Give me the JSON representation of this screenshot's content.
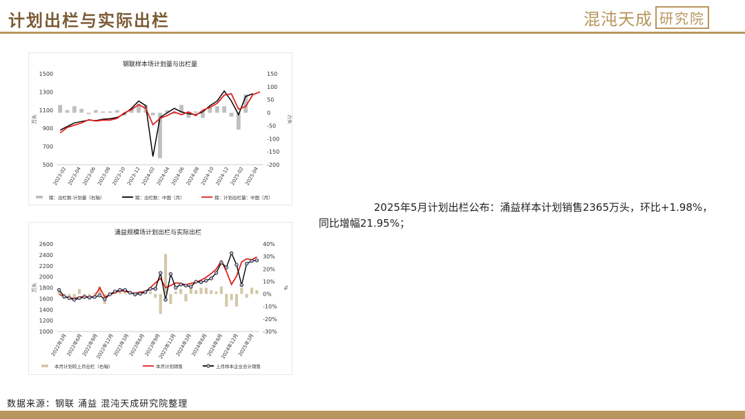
{
  "header": {
    "title": "计划出栏与实际出栏",
    "logo_main": "混沌天成",
    "logo_box": "研究院"
  },
  "colors": {
    "accent": "#b8955c",
    "red": "#e02020",
    "black": "#000000",
    "grey_bar": "#bfbfbf",
    "tan_bar": "#d2c8a8"
  },
  "text_block": "2025年5月计划出栏公布：涌益样本计划销售2365万头，环比+1.98%，同比增幅21.95%；",
  "source": "数据来源：钢联 涌益 混沌天成研究院整理",
  "chart_data": [
    {
      "type": "bar+line",
      "title": "钢联样本场计划量与出栏量",
      "ylabel": "万头",
      "ylabel_right": "万头",
      "ylim": [
        500,
        1500
      ],
      "yticks": [
        500,
        700,
        900,
        1100,
        1300,
        1500
      ],
      "ylim_right": [
        -200,
        150
      ],
      "yticks_right": [
        -200,
        -150,
        -100,
        -50,
        0,
        50,
        100,
        150
      ],
      "xtick_labels": [
        "2023-02",
        "2023-04",
        "2023-06",
        "2023-08",
        "2023-10",
        "2023-12",
        "2024-02",
        "2024-04",
        "2024-06",
        "2024-08",
        "2024-10",
        "2024-12",
        "2025-02",
        "2025-04"
      ],
      "x": [
        "2023-01",
        "2023-02",
        "2023-03",
        "2023-04",
        "2023-05",
        "2023-06",
        "2023-07",
        "2023-08",
        "2023-09",
        "2023-10",
        "2023-11",
        "2023-12",
        "2024-01",
        "2024-02",
        "2024-03",
        "2024-04",
        "2024-05",
        "2024-06",
        "2024-07",
        "2024-08",
        "2024-09",
        "2024-10",
        "2024-11",
        "2024-12",
        "2025-01",
        "2025-02",
        "2025-03",
        "2025-04",
        "2025-05"
      ],
      "series": [
        {
          "name": "猪：出栏数-计划量（右轴）",
          "kind": "bar",
          "axis": "right",
          "values": [
            30,
            10,
            25,
            15,
            -5,
            10,
            5,
            5,
            10,
            -10,
            15,
            35,
            30,
            -10,
            -175,
            10,
            -5,
            30,
            -20,
            5,
            -20,
            20,
            25,
            25,
            -15,
            -65,
            70,
            null,
            null
          ]
        },
        {
          "name": "猪：出栏数：中国（月）",
          "kind": "line",
          "axis": "left",
          "values": [
            880,
            920,
            960,
            975,
            990,
            985,
            1000,
            1005,
            1020,
            1060,
            1120,
            1200,
            1150,
            590,
            1020,
            1070,
            1120,
            1080,
            1060,
            1050,
            1080,
            1150,
            1200,
            1310,
            1200,
            1050,
            1250,
            1280,
            null
          ]
        },
        {
          "name": "猪：计划出栏量：中国（月）",
          "kind": "line",
          "axis": "left",
          "values": [
            850,
            910,
            935,
            960,
            995,
            980,
            990,
            990,
            1010,
            1070,
            1105,
            1160,
            1120,
            940,
            1010,
            1040,
            1080,
            1050,
            1080,
            1040,
            1100,
            1130,
            1175,
            1265,
            1280,
            1110,
            1140,
            1270,
            1300
          ]
        }
      ]
    },
    {
      "type": "bar+line",
      "title": "涌益规模场计划出栏与实际出栏",
      "ylabel": "万头",
      "ylabel_right": "%",
      "ylim": [
        1000,
        2600
      ],
      "yticks": [
        1000,
        1200,
        1400,
        1600,
        1800,
        2000,
        2200,
        2400,
        2600
      ],
      "ylim_right": [
        -30,
        40
      ],
      "yticks_right_labels": [
        "-30%",
        "-20%",
        "-10%",
        "0%",
        "10%",
        "20%",
        "30%",
        "40%"
      ],
      "yticks_right": [
        -30,
        -20,
        -10,
        0,
        10,
        20,
        30,
        40
      ],
      "xtick_labels": [
        "2022年3月",
        "2022年6月",
        "2022年9月",
        "2022年12月",
        "2023年3月",
        "2023年6月",
        "2023年9月",
        "2023年12月",
        "2024年3月",
        "2024年6月",
        "2024年9月",
        "2024年12月",
        "2025年3月"
      ],
      "series": [
        {
          "name": "本月计划较上月出栏（右轴）",
          "kind": "bar",
          "axis": "right",
          "values": [
            3,
            -4,
            -2,
            -3,
            4,
            -2,
            -2,
            1,
            6,
            -8,
            1,
            3,
            2,
            2,
            0,
            -2,
            1,
            2,
            2,
            -3,
            -16,
            32,
            -8,
            2,
            4,
            -6,
            5,
            3,
            5,
            5,
            3,
            2,
            6,
            -10,
            -5,
            -10,
            5,
            -3,
            5,
            3
          ]
        },
        {
          "name": "本月计划销售",
          "kind": "line",
          "axis": "left",
          "values": [
            1680,
            1640,
            1620,
            1600,
            1630,
            1640,
            1630,
            1640,
            1800,
            1630,
            1670,
            1710,
            1740,
            1740,
            1700,
            1700,
            1720,
            1730,
            1800,
            1890,
            1970,
            1800,
            1840,
            1890,
            1880,
            1850,
            1880,
            1900,
            1940,
            1990,
            2060,
            2140,
            2290,
            2100,
            1860,
            2010,
            2270,
            2330,
            2310,
            2365
          ]
        },
        {
          "name": "上月样本企业合计销售",
          "kind": "line-marker",
          "axis": "left",
          "values": [
            1760,
            1640,
            1610,
            1580,
            1610,
            1630,
            1620,
            1630,
            1660,
            1590,
            1680,
            1730,
            1760,
            1760,
            1710,
            1680,
            1690,
            1720,
            1780,
            1780,
            2070,
            1580,
            2050,
            1800,
            1860,
            1840,
            1820,
            1910,
            1900,
            1930,
            1970,
            2070,
            2260,
            2170,
            2430,
            2220,
            1850,
            2240,
            2290,
            2300
          ]
        }
      ]
    }
  ]
}
